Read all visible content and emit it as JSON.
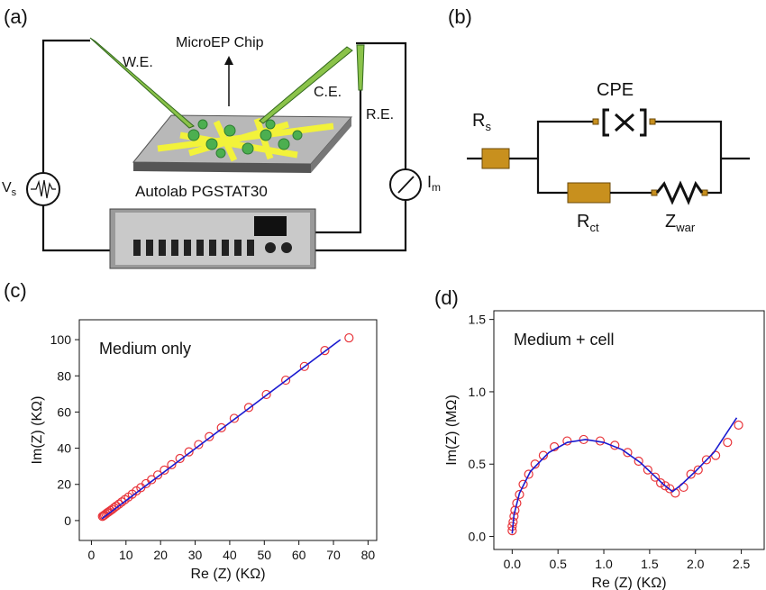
{
  "panel_a": {
    "label": "(a)",
    "we": "W.E.",
    "chip": "MicroEP Chip",
    "ce": "C.E.",
    "re": "R.E.",
    "vs": "V",
    "vs_sub": "s",
    "instrument": "Autolab PGSTAT30",
    "im": "I",
    "im_sub": "m"
  },
  "panel_b": {
    "label": "(b)",
    "rs": "R",
    "rs_sub": "s",
    "cpe": "CPE",
    "rct": "R",
    "rct_sub": "ct",
    "zwar": "Z",
    "zwar_sub": "war"
  },
  "chart_data": [
    {
      "type": "scatter",
      "panel": "(c)",
      "annotation": "Medium only",
      "x_label": "Re (Z) (KΩ)",
      "y_label": "Im(Z) (KΩ)",
      "xlim": [
        -3.5,
        82.5
      ],
      "ylim": [
        -11,
        111
      ],
      "xticks": [
        0,
        10,
        20,
        30,
        40,
        50,
        60,
        70,
        80
      ],
      "yticks": [
        0,
        20,
        40,
        60,
        80,
        100
      ],
      "series": [
        {
          "type": "scatter",
          "color": "#e8343a",
          "x": [
            3.2,
            3.5,
            3.8,
            4.2,
            4.6,
            5,
            5.5,
            6,
            6.6,
            7.2,
            8,
            8.8,
            9.7,
            10.7,
            11.8,
            13,
            14.3,
            15.8,
            17.4,
            19.2,
            21.1,
            23.2,
            25.6,
            28.2,
            31,
            34.1,
            37.6,
            41.3,
            45.5,
            50.6,
            56.2,
            61.6,
            67.5,
            74.5
          ],
          "values": [
            2.3,
            2.7,
            3.1,
            3.7,
            4.3,
            4.8,
            5.5,
            6.2,
            7.1,
            8,
            9.1,
            10.3,
            11.6,
            13,
            14.6,
            16.4,
            18.2,
            20.4,
            22.6,
            25.2,
            27.9,
            30.9,
            34.3,
            38,
            42,
            46.4,
            51.3,
            56.5,
            62.5,
            69.7,
            77.6,
            85.2,
            94,
            101
          ]
        },
        {
          "type": "line",
          "color": "#1a1ad0",
          "x": [
            3,
            72
          ],
          "values": [
            1,
            100
          ]
        }
      ]
    },
    {
      "type": "scatter",
      "panel": "(d)",
      "annotation": "Medium + cell",
      "x_label": "Re (Z) (KΩ)",
      "y_label": "Im(Z) (MΩ)",
      "xlim": [
        -0.2,
        2.75
      ],
      "ylim": [
        -0.09,
        1.56
      ],
      "xticks": [
        {
          "value": 0,
          "label": "0.0"
        },
        {
          "value": 0.5,
          "label": "0.5"
        },
        {
          "value": 1,
          "label": "1.0"
        },
        {
          "value": 1.5,
          "label": "1.5"
        },
        {
          "value": 2,
          "label": "2.0"
        },
        {
          "value": 2.5,
          "label": "2.5"
        }
      ],
      "yticks": [
        {
          "value": 0,
          "label": "0.0"
        },
        {
          "value": 0.5,
          "label": "0.5"
        },
        {
          "value": 1,
          "label": "1.0"
        },
        {
          "value": 1.5,
          "label": "1.5"
        }
      ],
      "series": [
        {
          "type": "scatter",
          "color": "#e8343a",
          "x": [
            0,
            0,
            0.01,
            0.02,
            0.03,
            0.05,
            0.08,
            0.12,
            0.18,
            0.25,
            0.34,
            0.46,
            0.6,
            0.78,
            0.96,
            1.12,
            1.26,
            1.38,
            1.48,
            1.56,
            1.62,
            1.67,
            1.72,
            1.78,
            1.87,
            1.95,
            2.03,
            2.12,
            2.22,
            2.35,
            2.47
          ],
          "values": [
            0.04,
            0.07,
            0.1,
            0.14,
            0.18,
            0.23,
            0.29,
            0.36,
            0.43,
            0.5,
            0.56,
            0.62,
            0.66,
            0.67,
            0.66,
            0.63,
            0.58,
            0.52,
            0.46,
            0.41,
            0.37,
            0.35,
            0.33,
            0.3,
            0.34,
            0.43,
            0.46,
            0.53,
            0.56,
            0.65,
            0.77
          ]
        },
        {
          "type": "line",
          "color": "#1a1ad0",
          "x": [
            0,
            0.02,
            0.08,
            0.2,
            0.4,
            0.6,
            0.8,
            1,
            1.2,
            1.4,
            1.55,
            1.65,
            1.75,
            1.85,
            2,
            2.2,
            2.45
          ],
          "values": [
            0.02,
            0.15,
            0.3,
            0.45,
            0.58,
            0.65,
            0.67,
            0.65,
            0.6,
            0.51,
            0.42,
            0.36,
            0.31,
            0.36,
            0.45,
            0.58,
            0.82
          ]
        }
      ]
    }
  ]
}
